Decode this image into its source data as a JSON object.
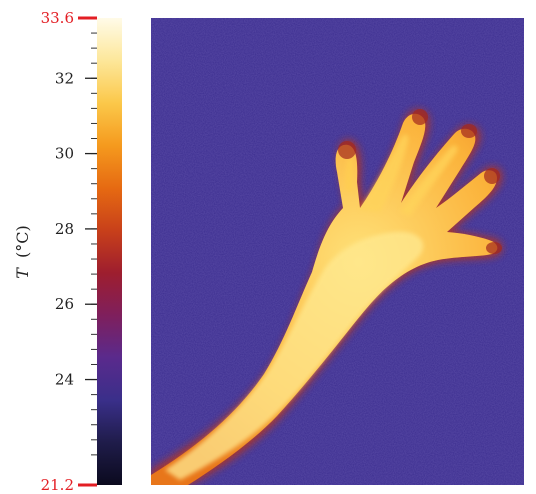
{
  "colorbar": {
    "axis_label_symbol": "T",
    "axis_label_unit": "(°C)",
    "min_label": "21.2",
    "max_label": "33.6",
    "min": 21.2,
    "max": 33.6,
    "major_ticks": [
      "24",
      "26",
      "28",
      "30",
      "32"
    ],
    "end_label_color": "#e31e24",
    "colormap": [
      "#0b0a1e",
      "#1f1c4a",
      "#3a2f8a",
      "#5a2a8c",
      "#7f1f5c",
      "#9e1e2e",
      "#c8401a",
      "#e66a12",
      "#f59a1e",
      "#fbc84a",
      "#fde79a",
      "#fffbe8"
    ]
  },
  "thermal_image": {
    "background_color": "#3b2d8f",
    "hand_core_color": "#ffd24d",
    "hand_edge_color": "#c23a1c"
  }
}
